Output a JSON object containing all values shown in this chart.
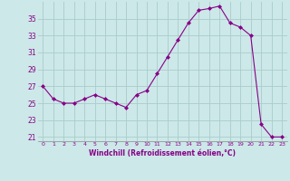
{
  "x": [
    0,
    1,
    2,
    3,
    4,
    5,
    6,
    7,
    8,
    9,
    10,
    11,
    12,
    13,
    14,
    15,
    16,
    17,
    18,
    19,
    20,
    21,
    22,
    23
  ],
  "y": [
    27.0,
    25.5,
    25.0,
    25.0,
    25.5,
    26.0,
    25.5,
    25.0,
    24.5,
    26.0,
    26.5,
    28.5,
    30.5,
    32.5,
    34.5,
    36.0,
    36.2,
    36.5,
    34.5,
    34.0,
    33.0,
    22.5,
    21.0,
    21.0
  ],
  "line_color": "#880088",
  "marker": "D",
  "marker_size": 2.0,
  "bg_color": "#cce8e8",
  "grid_color": "#aacccc",
  "xlabel": "Windchill (Refroidissement éolien,°C)",
  "xlabel_color": "#880088",
  "tick_color": "#880088",
  "yticks": [
    21,
    23,
    25,
    27,
    29,
    31,
    33,
    35
  ],
  "xlim": [
    -0.5,
    23.5
  ],
  "ylim": [
    20.5,
    37.0
  ]
}
